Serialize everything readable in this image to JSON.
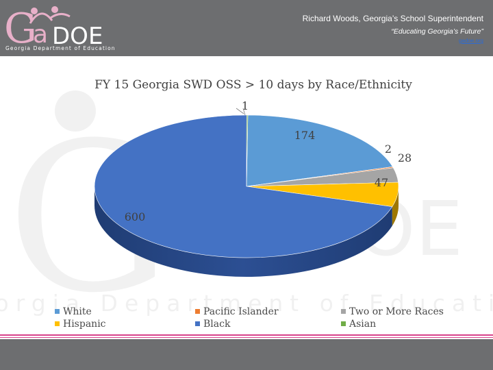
{
  "header": {
    "logo_text": "Georgia Department of Education",
    "title": "Richard Woods, Georgia’s School Superintendent",
    "tagline": "“Educating Georgia’s Future”",
    "link": "gadoe.org"
  },
  "watermark": {
    "text": "Georgia Department of Education"
  },
  "colors": {
    "header_bg": "#6d6e70",
    "accent_pink": "#d8428b",
    "white": "#5b9bd5",
    "pacific_islander": "#ed7d31",
    "two_or_more": "#a5a5a5",
    "hispanic": "#ffc000",
    "black": "#4472c4",
    "asian": "#70ad47"
  },
  "chart_data": {
    "type": "pie",
    "title": "FY 15 Georgia SWD OSS > 10 days by Race/Ethnicity",
    "categories": [
      "White",
      "Pacific Islander",
      "Two or More Races",
      "Hispanic",
      "Black",
      "Asian"
    ],
    "values": [
      174,
      2,
      28,
      47,
      600,
      1
    ],
    "data_labels": [
      "174",
      "2",
      "28",
      "47",
      "600",
      "1"
    ],
    "legend_placement": "bottom",
    "three_d": true
  }
}
